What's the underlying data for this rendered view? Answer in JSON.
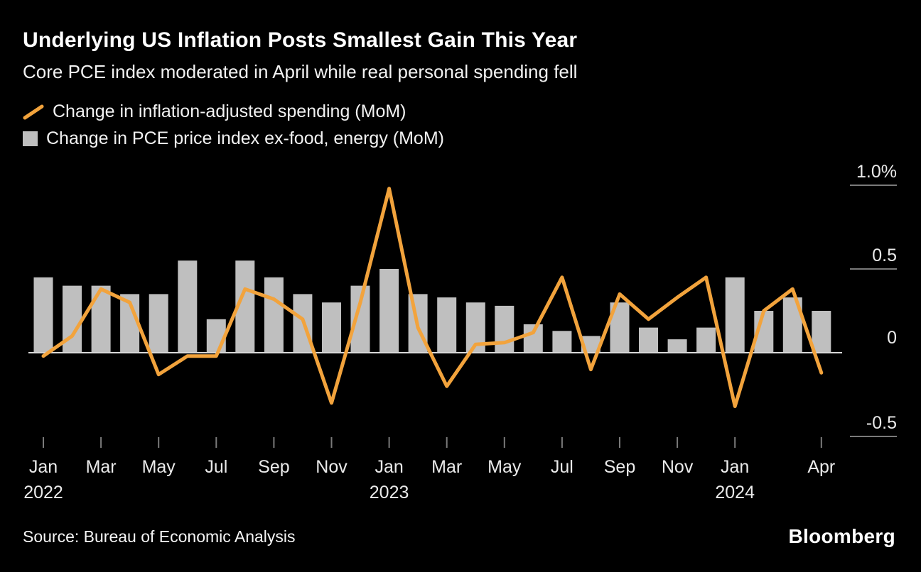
{
  "header": {
    "title": "Underlying US Inflation Posts Smallest Gain This Year",
    "subtitle": "Core PCE index moderated in April while real personal spending fell"
  },
  "legend": [
    {
      "swatch": "orange-diagonal-line",
      "color": "#F2A33C",
      "label": "Change in inflation-adjusted spending (MoM)"
    },
    {
      "swatch": "gray-square",
      "color": "#BFBFBF",
      "label": "Change in PCE price index ex-food, energy (MoM)"
    }
  ],
  "footer": {
    "source": "Source: Bureau of Economic Analysis",
    "brand": "Bloomberg"
  },
  "colors": {
    "background": "#000000",
    "line_series": "#F2A33C",
    "bar_series": "#BFBFBF",
    "zero_line": "#D8D8D8",
    "tick_line": "#7a7a7a",
    "axis_text": "#eaeaea"
  },
  "chart_data": {
    "type": "bar+line",
    "categories": [
      "Jan 2022",
      "Feb 2022",
      "Mar 2022",
      "Apr 2022",
      "May 2022",
      "Jun 2022",
      "Jul 2022",
      "Aug 2022",
      "Sep 2022",
      "Oct 2022",
      "Nov 2022",
      "Dec 2022",
      "Jan 2023",
      "Feb 2023",
      "Mar 2023",
      "Apr 2023",
      "May 2023",
      "Jun 2023",
      "Jul 2023",
      "Aug 2023",
      "Sep 2023",
      "Oct 2023",
      "Nov 2023",
      "Dec 2023",
      "Jan 2024",
      "Feb 2024",
      "Mar 2024",
      "Apr 2024"
    ],
    "series": [
      {
        "name": "Change in inflation-adjusted spending (MoM)",
        "type": "line",
        "color": "#F2A33C",
        "values": [
          -0.02,
          0.1,
          0.38,
          0.3,
          -0.13,
          -0.02,
          -0.02,
          0.38,
          0.32,
          0.2,
          -0.3,
          0.3,
          0.98,
          0.15,
          -0.2,
          0.05,
          0.06,
          0.12,
          0.45,
          -0.1,
          0.35,
          0.2,
          0.33,
          0.45,
          -0.32,
          0.25,
          0.38,
          -0.12
        ]
      },
      {
        "name": "Change in PCE price index ex-food, energy (MoM)",
        "type": "bar",
        "color": "#BFBFBF",
        "values": [
          0.45,
          0.4,
          0.4,
          0.35,
          0.35,
          0.55,
          0.2,
          0.55,
          0.45,
          0.35,
          0.3,
          0.4,
          0.5,
          0.35,
          0.33,
          0.3,
          0.28,
          0.17,
          0.13,
          0.1,
          0.3,
          0.15,
          0.08,
          0.15,
          0.45,
          0.25,
          0.33,
          0.25
        ]
      }
    ],
    "ylim": [
      -0.6,
      1.05
    ],
    "yticks": [
      {
        "value": 1.0,
        "label": "1.0%"
      },
      {
        "value": 0.5,
        "label": "0.5"
      },
      {
        "value": 0,
        "label": "0"
      },
      {
        "value": -0.5,
        "label": "-0.5"
      }
    ],
    "xticks": [
      {
        "index": 0,
        "label": "Jan",
        "year": "2022"
      },
      {
        "index": 2,
        "label": "Mar"
      },
      {
        "index": 4,
        "label": "May"
      },
      {
        "index": 6,
        "label": "Jul"
      },
      {
        "index": 8,
        "label": "Sep"
      },
      {
        "index": 10,
        "label": "Nov"
      },
      {
        "index": 12,
        "label": "Jan",
        "year": "2023"
      },
      {
        "index": 14,
        "label": "Mar"
      },
      {
        "index": 16,
        "label": "May"
      },
      {
        "index": 18,
        "label": "Jul"
      },
      {
        "index": 20,
        "label": "Sep"
      },
      {
        "index": 22,
        "label": "Nov"
      },
      {
        "index": 24,
        "label": "Jan",
        "year": "2024"
      },
      {
        "index": 27,
        "label": "Apr"
      }
    ],
    "grid": "right-side short ticks, full-width zero line",
    "legend_position": "top-left"
  }
}
